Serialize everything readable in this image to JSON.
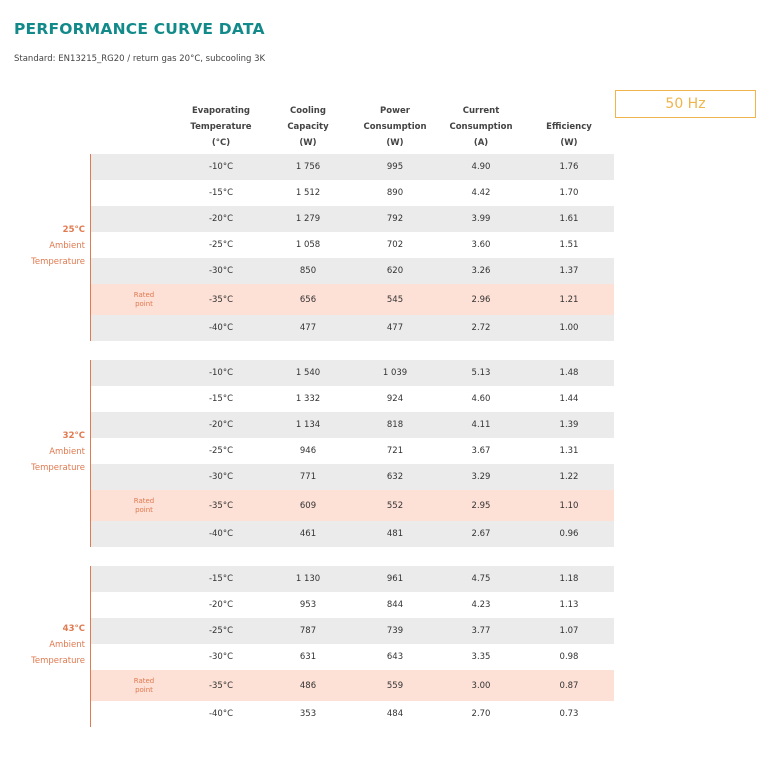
{
  "title": "PERFORMANCE CURVE DATA",
  "subtitle": "Standard: EN13215_RG20 / return gas 20°C, subcooling 3K",
  "frequency": "50 Hz",
  "headers": [
    [
      "Evaporating",
      "Temperature",
      "(°C)"
    ],
    [
      "Cooling",
      "Capacity",
      "(W)"
    ],
    [
      "Power",
      "Consumption",
      "(W)"
    ],
    [
      "Current",
      "Consumption",
      "(A)"
    ],
    [
      "Efficiency",
      "(W)"
    ]
  ],
  "rated_label": [
    "Rated",
    "point"
  ],
  "groups": [
    {
      "temp": "25°C",
      "label": [
        "Ambient",
        "Temperature"
      ],
      "rows": [
        {
          "evap": "-10°C",
          "cap": "1 756",
          "power": "995",
          "current": "4.90",
          "eff": "1.76"
        },
        {
          "evap": "-15°C",
          "cap": "1 512",
          "power": "890",
          "current": "4.42",
          "eff": "1.70"
        },
        {
          "evap": "-20°C",
          "cap": "1 279",
          "power": "792",
          "current": "3.99",
          "eff": "1.61"
        },
        {
          "evap": "-25°C",
          "cap": "1 058",
          "power": "702",
          "current": "3.60",
          "eff": "1.51"
        },
        {
          "evap": "-30°C",
          "cap": "850",
          "power": "620",
          "current": "3.26",
          "eff": "1.37"
        },
        {
          "evap": "-35°C",
          "cap": "656",
          "power": "545",
          "current": "2.96",
          "eff": "1.21",
          "rated": true
        },
        {
          "evap": "-40°C",
          "cap": "477",
          "power": "477",
          "current": "2.72",
          "eff": "1.00"
        }
      ]
    },
    {
      "temp": "32°C",
      "label": [
        "Ambient",
        "Temperature"
      ],
      "rows": [
        {
          "evap": "-10°C",
          "cap": "1 540",
          "power": "1 039",
          "current": "5.13",
          "eff": "1.48"
        },
        {
          "evap": "-15°C",
          "cap": "1 332",
          "power": "924",
          "current": "4.60",
          "eff": "1.44"
        },
        {
          "evap": "-20°C",
          "cap": "1 134",
          "power": "818",
          "current": "4.11",
          "eff": "1.39"
        },
        {
          "evap": "-25°C",
          "cap": "946",
          "power": "721",
          "current": "3.67",
          "eff": "1.31"
        },
        {
          "evap": "-30°C",
          "cap": "771",
          "power": "632",
          "current": "3.29",
          "eff": "1.22"
        },
        {
          "evap": "-35°C",
          "cap": "609",
          "power": "552",
          "current": "2.95",
          "eff": "1.10",
          "rated": true
        },
        {
          "evap": "-40°C",
          "cap": "461",
          "power": "481",
          "current": "2.67",
          "eff": "0.96"
        }
      ]
    },
    {
      "temp": "43°C",
      "label": [
        "Ambient",
        "Temperature"
      ],
      "rows": [
        {
          "evap": "-15°C",
          "cap": "1 130",
          "power": "961",
          "current": "4.75",
          "eff": "1.18"
        },
        {
          "evap": "-20°C",
          "cap": "953",
          "power": "844",
          "current": "4.23",
          "eff": "1.13"
        },
        {
          "evap": "-25°C",
          "cap": "787",
          "power": "739",
          "current": "3.77",
          "eff": "1.07"
        },
        {
          "evap": "-30°C",
          "cap": "631",
          "power": "643",
          "current": "3.35",
          "eff": "0.98"
        },
        {
          "evap": "-35°C",
          "cap": "486",
          "power": "559",
          "current": "3.00",
          "eff": "0.87",
          "rated": true
        },
        {
          "evap": "-40°C",
          "cap": "353",
          "power": "484",
          "current": "2.70",
          "eff": "0.73"
        }
      ]
    }
  ]
}
